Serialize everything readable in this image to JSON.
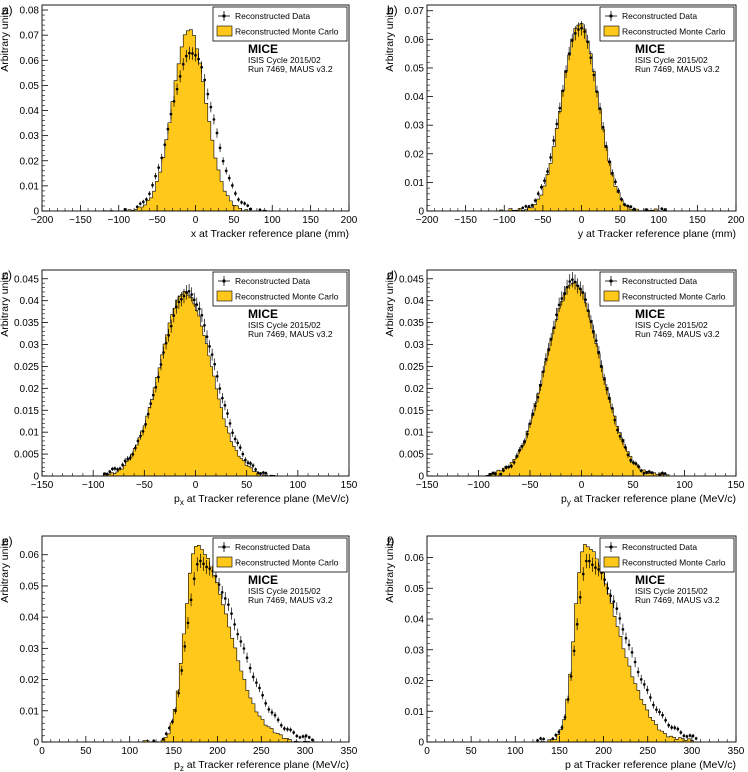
{
  "figure": {
    "legend": {
      "data_label": "Reconstructed Data",
      "mc_label": "Reconstructed Monte Carlo"
    },
    "experiment": "MICE",
    "cycle": "ISIS Cycle 2015/02",
    "run": "Run 7469, MAUS v3.2",
    "ylabel": "Arbitrary units",
    "colors": {
      "mc_fill": "#ffc81a",
      "mc_line": "#000000",
      "data": "#000000",
      "axis": "#000000"
    }
  },
  "chart_data": [
    {
      "id": "a",
      "panel_label": "a)",
      "type": "histogram",
      "xlabel": "x at Tracker reference plane (mm)",
      "xlabel_main": "x at Tracker reference plane (mm)",
      "xlabel_sub": "",
      "xlim": [
        -200,
        200
      ],
      "xticks": [
        -200,
        -150,
        -100,
        -50,
        0,
        50,
        100,
        150,
        200
      ],
      "xticklabels": [
        "−200",
        "−150",
        "−100",
        "−50",
        "0",
        "50",
        "100",
        "150",
        "200"
      ],
      "ylim": [
        0,
        0.082
      ],
      "yticks": [
        0,
        0.01,
        0.02,
        0.03,
        0.04,
        0.05,
        0.06,
        0.07,
        0.08
      ],
      "yticklabels": [
        "0",
        "0.01",
        "0.02",
        "0.03",
        "0.04",
        "0.05",
        "0.06",
        "0.07",
        "0.08"
      ],
      "dist": {
        "kind": "gauss",
        "mean": -8,
        "sigma": 22,
        "peak": 0.072,
        "range": [
          -120,
          100
        ],
        "nbins": 55
      },
      "data_dist": {
        "kind": "gauss",
        "mean": -5,
        "sigma": 27,
        "peak": 0.063,
        "range": [
          -110,
          110
        ],
        "nbins": 55
      },
      "series": [
        {
          "name": "Reconstructed Monte Carlo",
          "style": "filled-histogram"
        },
        {
          "name": "Reconstructed Data",
          "style": "points-with-errors"
        }
      ]
    },
    {
      "id": "b",
      "panel_label": "b)",
      "type": "histogram",
      "xlabel": "y at Tracker reference plane (mm)",
      "xlabel_main": "y at Tracker reference plane (mm)",
      "xlabel_sub": "",
      "xlim": [
        -200,
        200
      ],
      "xticks": [
        -200,
        -150,
        -100,
        -50,
        0,
        50,
        100,
        150,
        200
      ],
      "xticklabels": [
        "−200",
        "−150",
        "−100",
        "−50",
        "0",
        "50",
        "100",
        "150",
        "200"
      ],
      "ylim": [
        0,
        0.072
      ],
      "yticks": [
        0,
        0.01,
        0.02,
        0.03,
        0.04,
        0.05,
        0.06,
        0.07
      ],
      "yticklabels": [
        "0",
        "0.01",
        "0.02",
        "0.03",
        "0.04",
        "0.05",
        "0.06",
        "0.07"
      ],
      "dist": {
        "kind": "gauss",
        "mean": -2,
        "sigma": 23,
        "peak": 0.066,
        "range": [
          -110,
          110
        ],
        "nbins": 55
      },
      "data_dist": {
        "kind": "gauss",
        "mean": -2,
        "sigma": 24,
        "peak": 0.064,
        "range": [
          -110,
          110
        ],
        "nbins": 55
      },
      "series": [
        {
          "name": "Reconstructed Monte Carlo",
          "style": "filled-histogram"
        },
        {
          "name": "Reconstructed Data",
          "style": "points-with-errors"
        }
      ]
    },
    {
      "id": "c",
      "panel_label": "c)",
      "type": "histogram",
      "xlabel": "px at Tracker reference plane (MeV/c)",
      "xlabel_main": "p",
      "xlabel_sub": "x",
      "xlabel_rest": " at Tracker reference plane (MeV/c)",
      "xlim": [
        -150,
        150
      ],
      "xticks": [
        -150,
        -100,
        -50,
        0,
        50,
        100,
        150
      ],
      "xticklabels": [
        "−150",
        "−100",
        "−50",
        "0",
        "50",
        "100",
        "150"
      ],
      "ylim": [
        0,
        0.047
      ],
      "yticks": [
        0,
        0.005,
        0.01,
        0.015,
        0.02,
        0.025,
        0.03,
        0.035,
        0.04,
        0.045
      ],
      "yticklabels": [
        "0",
        "0.005",
        "0.01",
        "0.015",
        "0.02",
        "0.025",
        "0.03",
        "0.035",
        "0.04",
        "0.045"
      ],
      "dist": {
        "kind": "gauss",
        "mean": -10,
        "sigma": 25,
        "peak": 0.042,
        "range": [
          -90,
          80
        ],
        "nbins": 70
      },
      "data_dist": {
        "kind": "gauss",
        "mean": -8,
        "sigma": 26,
        "peak": 0.042,
        "range": [
          -90,
          85
        ],
        "nbins": 70
      },
      "series": [
        {
          "name": "Reconstructed Monte Carlo",
          "style": "filled-histogram"
        },
        {
          "name": "Reconstructed Data",
          "style": "points-with-errors"
        }
      ]
    },
    {
      "id": "d",
      "panel_label": "d)",
      "type": "histogram",
      "xlabel": "py at Tracker reference plane (MeV/c)",
      "xlabel_main": "p",
      "xlabel_sub": "y",
      "xlabel_rest": " at Tracker reference plane (MeV/c)",
      "xlim": [
        -150,
        150
      ],
      "xticks": [
        -150,
        -100,
        -50,
        0,
        50,
        100,
        150
      ],
      "xticklabels": [
        "−150",
        "−100",
        "−50",
        "0",
        "50",
        "100",
        "150"
      ],
      "ylim": [
        0,
        0.047
      ],
      "yticks": [
        0,
        0.005,
        0.01,
        0.015,
        0.02,
        0.025,
        0.03,
        0.035,
        0.04,
        0.045
      ],
      "yticklabels": [
        "0",
        "0.005",
        "0.01",
        "0.015",
        "0.02",
        "0.025",
        "0.03",
        "0.035",
        "0.04",
        "0.045"
      ],
      "dist": {
        "kind": "gauss",
        "mean": -8,
        "sigma": 26,
        "peak": 0.044,
        "range": [
          -95,
          85
        ],
        "nbins": 70
      },
      "data_dist": {
        "kind": "gauss",
        "mean": -8,
        "sigma": 26,
        "peak": 0.044,
        "range": [
          -95,
          85
        ],
        "nbins": 70
      },
      "series": [
        {
          "name": "Reconstructed Monte Carlo",
          "style": "filled-histogram"
        },
        {
          "name": "Reconstructed Data",
          "style": "points-with-errors"
        }
      ]
    },
    {
      "id": "e",
      "panel_label": "e)",
      "type": "histogram",
      "xlabel": "pz at Tracker reference plane (MeV/c)",
      "xlabel_main": "p",
      "xlabel_sub": "z",
      "xlabel_rest": " at Tracker reference plane (MeV/c)",
      "xlim": [
        0,
        350
      ],
      "xticks": [
        0,
        50,
        100,
        150,
        200,
        250,
        300,
        350
      ],
      "xticklabels": [
        "0",
        "50",
        "100",
        "150",
        "200",
        "250",
        "300",
        "350"
      ],
      "ylim": [
        0,
        0.066
      ],
      "yticks": [
        0,
        0.01,
        0.02,
        0.03,
        0.04,
        0.05,
        0.06
      ],
      "yticklabels": [
        "0",
        "0.01",
        "0.02",
        "0.03",
        "0.04",
        "0.05",
        "0.06"
      ],
      "dist": {
        "kind": "skew",
        "mode": 176,
        "sigmaL": 13,
        "sigmaR": 36,
        "peak": 0.063,
        "range": [
          115,
          305
        ],
        "nbins": 55
      },
      "data_dist": {
        "kind": "skew",
        "mode": 180,
        "sigmaL": 15,
        "sigmaR": 44,
        "peak": 0.057,
        "range": [
          115,
          310
        ],
        "nbins": 55
      },
      "series": [
        {
          "name": "Reconstructed Monte Carlo",
          "style": "filled-histogram"
        },
        {
          "name": "Reconstructed Data",
          "style": "points-with-errors"
        }
      ]
    },
    {
      "id": "f",
      "panel_label": "f)",
      "type": "histogram",
      "xlabel": "p at Tracker reference plane (MeV/c)",
      "xlabel_main": "p at Tracker reference plane (MeV/c)",
      "xlabel_sub": "",
      "xlim": [
        0,
        350
      ],
      "xticks": [
        0,
        50,
        100,
        150,
        200,
        250,
        300,
        350
      ],
      "xticklabels": [
        "0",
        "50",
        "100",
        "150",
        "200",
        "250",
        "300",
        "350"
      ],
      "ylim": [
        0,
        0.067
      ],
      "yticks": [
        0,
        0.01,
        0.02,
        0.03,
        0.04,
        0.05,
        0.06
      ],
      "yticklabels": [
        "0",
        "0.01",
        "0.02",
        "0.03",
        "0.04",
        "0.05",
        "0.06"
      ],
      "dist": {
        "kind": "skew",
        "mode": 178,
        "sigmaL": 11,
        "sigmaR": 37,
        "peak": 0.064,
        "range": [
          120,
          305
        ],
        "nbins": 55
      },
      "data_dist": {
        "kind": "skew",
        "mode": 182,
        "sigmaL": 13,
        "sigmaR": 42,
        "peak": 0.059,
        "range": [
          120,
          310
        ],
        "nbins": 55
      },
      "series": [
        {
          "name": "Reconstructed Monte Carlo",
          "style": "filled-histogram"
        },
        {
          "name": "Reconstructed Data",
          "style": "points-with-errors"
        }
      ]
    }
  ]
}
